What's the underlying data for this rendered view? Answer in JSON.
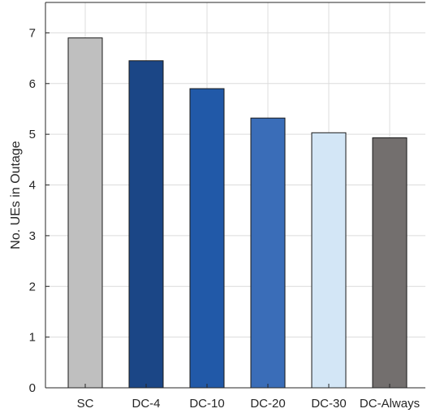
{
  "chart_data": {
    "type": "bar",
    "categories": [
      "SC",
      "DC-4",
      "DC-10",
      "DC-20",
      "DC-30",
      "DC-Always"
    ],
    "values": [
      6.9,
      6.45,
      5.9,
      5.32,
      5.03,
      4.93
    ],
    "colors": [
      "#bfbfbf",
      "#1b4686",
      "#2159a8",
      "#3a6db8",
      "#d3e6f6",
      "#736f6e"
    ],
    "title": "",
    "xlabel": "",
    "ylabel": "No. UEs in Outage",
    "ylim": [
      0,
      7.6
    ],
    "yticks": [
      0,
      1,
      2,
      3,
      4,
      5,
      6,
      7
    ],
    "grid": true,
    "legend": "none"
  }
}
